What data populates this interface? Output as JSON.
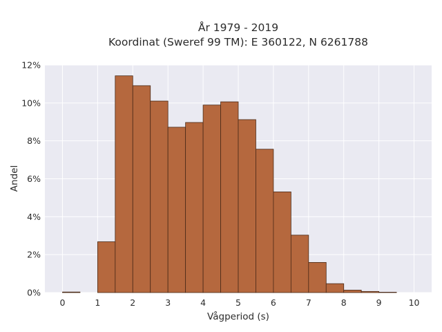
{
  "chart_data": {
    "type": "bar",
    "title_lines": [
      "År 1979 - 2019",
      "Koordinat (Sweref 99 TM): E 360122, N 6261788"
    ],
    "xlabel": "Vågperiod (s)",
    "ylabel": "Andel",
    "xlim": [
      -0.5,
      10.5
    ],
    "ylim": [
      0,
      0.12
    ],
    "x_ticks": [
      0,
      1,
      2,
      3,
      4,
      5,
      6,
      7,
      8,
      9,
      10
    ],
    "y_ticks": [
      {
        "value": 0,
        "label": "0%"
      },
      {
        "value": 0.02,
        "label": "2%"
      },
      {
        "value": 0.04,
        "label": "4%"
      },
      {
        "value": 0.06,
        "label": "6%"
      },
      {
        "value": 0.08,
        "label": "8%"
      },
      {
        "value": 0.1,
        "label": "10%"
      },
      {
        "value": 0.12,
        "label": "12%"
      }
    ],
    "bin_width": 0.5,
    "bin_starts": [
      0,
      0.5,
      1,
      1.5,
      2,
      2.5,
      3,
      3.5,
      4,
      4.5,
      5,
      5.5,
      6,
      6.5,
      7,
      7.5,
      8,
      8.5,
      9,
      9.5
    ],
    "values": [
      0.0003,
      0,
      0.0268,
      0.1143,
      0.1091,
      0.101,
      0.0872,
      0.0897,
      0.0989,
      0.1006,
      0.0912,
      0.0756,
      0.0531,
      0.0303,
      0.0159,
      0.0047,
      0.0013,
      0.0006,
      0.0002,
      0
    ],
    "grid": true,
    "legend": "none",
    "colors": {
      "bar_fill": "#b5683e",
      "bar_edge": "#4a2a18",
      "plot_background": "#eaeaf2",
      "grid": "#ffffff"
    }
  }
}
